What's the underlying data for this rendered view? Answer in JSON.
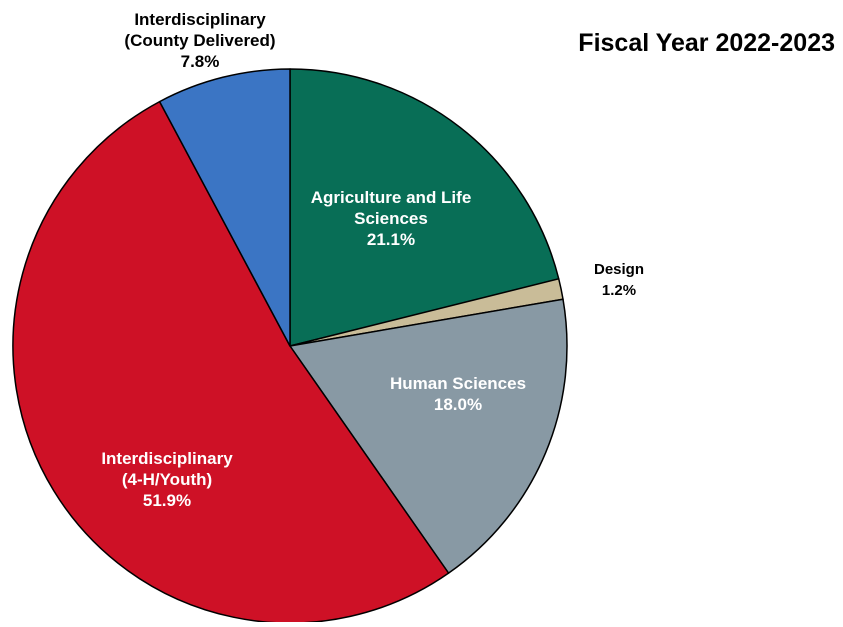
{
  "chart_data": {
    "type": "pie",
    "title": "Fiscal Year 2022-2023",
    "start_angle_deg": 0,
    "direction": "clockwise",
    "slices": [
      {
        "key": "agriculture",
        "label_lines": [
          "Agriculture and Life",
          "Sciences"
        ],
        "value": 21.1,
        "value_label": "21.1%",
        "color": "#086E56",
        "label_position": "inside",
        "label_color": "#ffffff"
      },
      {
        "key": "design",
        "label_lines": [
          "Design"
        ],
        "value": 1.2,
        "value_label": "1.2%",
        "color": "#C9BC98",
        "label_position": "outside",
        "label_color": "#000000"
      },
      {
        "key": "human-sciences",
        "label_lines": [
          "Human Sciences"
        ],
        "value": 18.0,
        "value_label": "18.0%",
        "color": "#8899A4",
        "label_position": "inside",
        "label_color": "#ffffff"
      },
      {
        "key": "interdisciplinary-4h-youth",
        "label_lines": [
          "Interdisciplinary",
          "(4-H/Youth)"
        ],
        "value": 51.9,
        "value_label": "51.9%",
        "color": "#CE1126",
        "label_position": "inside",
        "label_color": "#ffffff"
      },
      {
        "key": "interdisciplinary-county",
        "label_lines": [
          "Interdisciplinary",
          "(County Delivered)"
        ],
        "value": 7.8,
        "value_label": "7.8%",
        "color": "#3B75C4",
        "label_position": "outside",
        "label_color": "#000000"
      }
    ]
  }
}
